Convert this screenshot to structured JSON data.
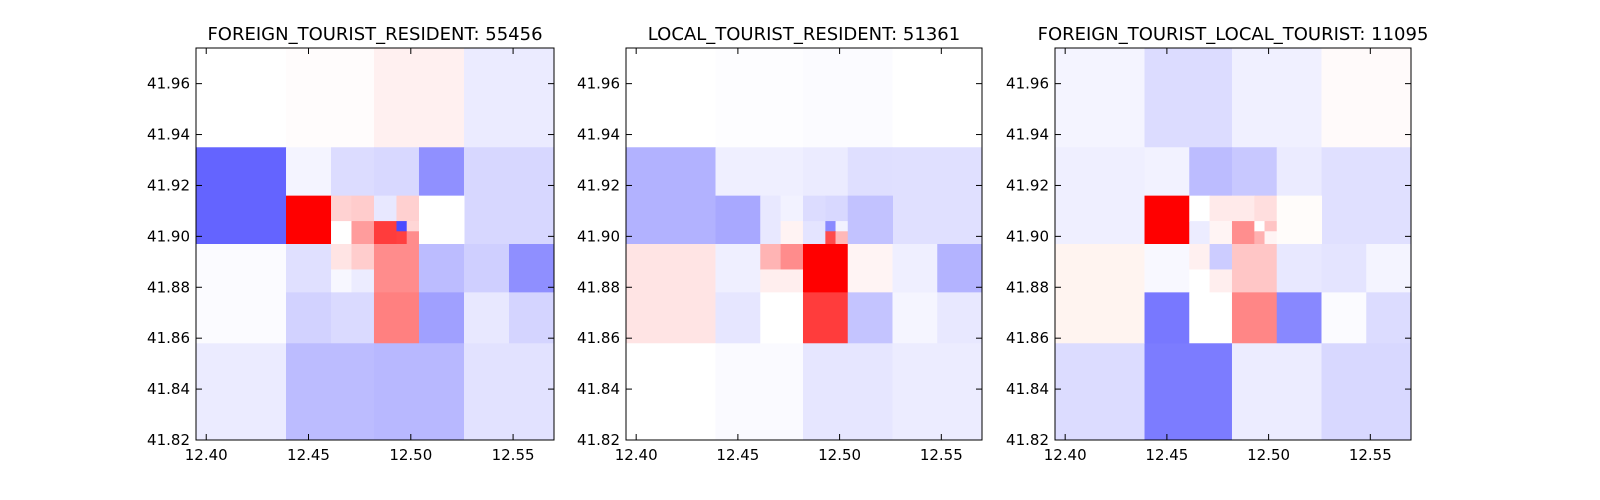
{
  "chart_data": [
    {
      "type": "heatmap",
      "title": "FOREIGN_TOURIST_RESIDENT: 55456",
      "xlim": [
        12.395,
        12.57
      ],
      "ylim": [
        41.82,
        41.974
      ],
      "xticks": [
        "12.40",
        "12.45",
        "12.50",
        "12.55"
      ],
      "yticks": [
        "41.82",
        "41.84",
        "41.86",
        "41.88",
        "41.90",
        "41.92",
        "41.94",
        "41.96"
      ],
      "cells": [
        {
          "x0": 12.395,
          "x1": 12.439,
          "y0": 41.935,
          "y1": 41.974,
          "color": "#ffffff"
        },
        {
          "x0": 12.439,
          "x1": 12.482,
          "y0": 41.935,
          "y1": 41.974,
          "color": "#fffcfc"
        },
        {
          "x0": 12.482,
          "x1": 12.526,
          "y0": 41.935,
          "y1": 41.974,
          "color": "#fff0f0"
        },
        {
          "x0": 12.526,
          "x1": 12.57,
          "y0": 41.935,
          "y1": 41.974,
          "color": "#ebebff"
        },
        {
          "x0": 12.395,
          "x1": 12.439,
          "y0": 41.897,
          "y1": 41.935,
          "color": "#6464ff"
        },
        {
          "x0": 12.439,
          "x1": 12.461,
          "y0": 41.916,
          "y1": 41.935,
          "color": "#f4f4ff"
        },
        {
          "x0": 12.461,
          "x1": 12.482,
          "y0": 41.916,
          "y1": 41.935,
          "color": "#dcdcff"
        },
        {
          "x0": 12.482,
          "x1": 12.504,
          "y0": 41.916,
          "y1": 41.935,
          "color": "#d8d8ff"
        },
        {
          "x0": 12.504,
          "x1": 12.526,
          "y0": 41.916,
          "y1": 41.935,
          "color": "#9090ff"
        },
        {
          "x0": 12.526,
          "x1": 12.57,
          "y0": 41.897,
          "y1": 41.935,
          "color": "#d7d7ff"
        },
        {
          "x0": 12.439,
          "x1": 12.461,
          "y0": 41.897,
          "y1": 41.916,
          "color": "#ff0000"
        },
        {
          "x0": 12.461,
          "x1": 12.471,
          "y0": 41.906,
          "y1": 41.916,
          "color": "#ffd2d2"
        },
        {
          "x0": 12.471,
          "x1": 12.482,
          "y0": 41.906,
          "y1": 41.916,
          "color": "#ffcccc"
        },
        {
          "x0": 12.461,
          "x1": 12.471,
          "y0": 41.897,
          "y1": 41.906,
          "color": "#ffffff"
        },
        {
          "x0": 12.471,
          "x1": 12.482,
          "y0": 41.897,
          "y1": 41.906,
          "color": "#ff9c9c"
        },
        {
          "x0": 12.482,
          "x1": 12.493,
          "y0": 41.906,
          "y1": 41.916,
          "color": "#e8e8ff"
        },
        {
          "x0": 12.493,
          "x1": 12.504,
          "y0": 41.906,
          "y1": 41.916,
          "color": "#ffd0d0"
        },
        {
          "x0": 12.482,
          "x1": 12.493,
          "y0": 41.897,
          "y1": 41.906,
          "color": "#ff3c3c"
        },
        {
          "x0": 12.493,
          "x1": 12.498,
          "y0": 41.902,
          "y1": 41.906,
          "color": "#4b4bff"
        },
        {
          "x0": 12.498,
          "x1": 12.504,
          "y0": 41.902,
          "y1": 41.906,
          "color": "#ffd6d6"
        },
        {
          "x0": 12.493,
          "x1": 12.498,
          "y0": 41.897,
          "y1": 41.902,
          "color": "#ff4040"
        },
        {
          "x0": 12.498,
          "x1": 12.504,
          "y0": 41.897,
          "y1": 41.902,
          "color": "#ff8c8c"
        },
        {
          "x0": 12.504,
          "x1": 12.526,
          "y0": 41.897,
          "y1": 41.916,
          "color": "#ffffff"
        },
        {
          "x0": 12.395,
          "x1": 12.439,
          "y0": 41.858,
          "y1": 41.897,
          "color": "#fbfbff"
        },
        {
          "x0": 12.439,
          "x1": 12.461,
          "y0": 41.878,
          "y1": 41.897,
          "color": "#e0e0ff"
        },
        {
          "x0": 12.461,
          "x1": 12.471,
          "y0": 41.887,
          "y1": 41.897,
          "color": "#ffe4e4"
        },
        {
          "x0": 12.471,
          "x1": 12.482,
          "y0": 41.887,
          "y1": 41.897,
          "color": "#ffcdcd"
        },
        {
          "x0": 12.461,
          "x1": 12.471,
          "y0": 41.878,
          "y1": 41.887,
          "color": "#f7f7ff"
        },
        {
          "x0": 12.471,
          "x1": 12.482,
          "y0": 41.878,
          "y1": 41.887,
          "color": "#ececff"
        },
        {
          "x0": 12.482,
          "x1": 12.504,
          "y0": 41.878,
          "y1": 41.897,
          "color": "#ff8c8c"
        },
        {
          "x0": 12.504,
          "x1": 12.526,
          "y0": 41.878,
          "y1": 41.897,
          "color": "#bcbcff"
        },
        {
          "x0": 12.526,
          "x1": 12.548,
          "y0": 41.878,
          "y1": 41.897,
          "color": "#cfcfff"
        },
        {
          "x0": 12.548,
          "x1": 12.57,
          "y0": 41.878,
          "y1": 41.897,
          "color": "#8f8fff"
        },
        {
          "x0": 12.439,
          "x1": 12.461,
          "y0": 41.858,
          "y1": 41.878,
          "color": "#d2d2ff"
        },
        {
          "x0": 12.461,
          "x1": 12.482,
          "y0": 41.858,
          "y1": 41.878,
          "color": "#dadaff"
        },
        {
          "x0": 12.482,
          "x1": 12.504,
          "y0": 41.858,
          "y1": 41.878,
          "color": "#ff8080"
        },
        {
          "x0": 12.504,
          "x1": 12.526,
          "y0": 41.858,
          "y1": 41.878,
          "color": "#a0a0ff"
        },
        {
          "x0": 12.526,
          "x1": 12.548,
          "y0": 41.858,
          "y1": 41.878,
          "color": "#e8e8ff"
        },
        {
          "x0": 12.548,
          "x1": 12.57,
          "y0": 41.858,
          "y1": 41.878,
          "color": "#d4d4ff"
        },
        {
          "x0": 12.395,
          "x1": 12.439,
          "y0": 41.82,
          "y1": 41.858,
          "color": "#ebebff"
        },
        {
          "x0": 12.439,
          "x1": 12.482,
          "y0": 41.82,
          "y1": 41.858,
          "color": "#bcbcff"
        },
        {
          "x0": 12.482,
          "x1": 12.526,
          "y0": 41.82,
          "y1": 41.858,
          "color": "#b8b8ff"
        },
        {
          "x0": 12.526,
          "x1": 12.57,
          "y0": 41.82,
          "y1": 41.858,
          "color": "#e2e2ff"
        }
      ]
    },
    {
      "type": "heatmap",
      "title": "LOCAL_TOURIST_RESIDENT: 51361",
      "xlim": [
        12.395,
        12.57
      ],
      "ylim": [
        41.82,
        41.974
      ],
      "xticks": [
        "12.40",
        "12.45",
        "12.50",
        "12.55"
      ],
      "yticks": [
        "41.82",
        "41.84",
        "41.86",
        "41.88",
        "41.90",
        "41.92",
        "41.94",
        "41.96"
      ],
      "cells": [
        {
          "x0": 12.395,
          "x1": 12.439,
          "y0": 41.935,
          "y1": 41.974,
          "color": "#ffffff"
        },
        {
          "x0": 12.439,
          "x1": 12.482,
          "y0": 41.935,
          "y1": 41.974,
          "color": "#fdfdff"
        },
        {
          "x0": 12.482,
          "x1": 12.526,
          "y0": 41.935,
          "y1": 41.974,
          "color": "#fbfbff"
        },
        {
          "x0": 12.526,
          "x1": 12.57,
          "y0": 41.935,
          "y1": 41.974,
          "color": "#ffffff"
        },
        {
          "x0": 12.395,
          "x1": 12.439,
          "y0": 41.897,
          "y1": 41.935,
          "color": "#b2b2ff"
        },
        {
          "x0": 12.439,
          "x1": 12.482,
          "y0": 41.916,
          "y1": 41.935,
          "color": "#efefff"
        },
        {
          "x0": 12.482,
          "x1": 12.504,
          "y0": 41.916,
          "y1": 41.935,
          "color": "#ebebff"
        },
        {
          "x0": 12.504,
          "x1": 12.526,
          "y0": 41.916,
          "y1": 41.935,
          "color": "#dfdfff"
        },
        {
          "x0": 12.526,
          "x1": 12.57,
          "y0": 41.897,
          "y1": 41.935,
          "color": "#e0e0ff"
        },
        {
          "x0": 12.439,
          "x1": 12.461,
          "y0": 41.897,
          "y1": 41.916,
          "color": "#a8a8ff"
        },
        {
          "x0": 12.461,
          "x1": 12.471,
          "y0": 41.897,
          "y1": 41.916,
          "color": "#e8e8ff"
        },
        {
          "x0": 12.471,
          "x1": 12.482,
          "y0": 41.906,
          "y1": 41.916,
          "color": "#f2f2ff"
        },
        {
          "x0": 12.471,
          "x1": 12.482,
          "y0": 41.897,
          "y1": 41.906,
          "color": "#fff3f3"
        },
        {
          "x0": 12.482,
          "x1": 12.493,
          "y0": 41.906,
          "y1": 41.916,
          "color": "#dcdcff"
        },
        {
          "x0": 12.493,
          "x1": 12.504,
          "y0": 41.906,
          "y1": 41.916,
          "color": "#d8d8ff"
        },
        {
          "x0": 12.482,
          "x1": 12.493,
          "y0": 41.897,
          "y1": 41.906,
          "color": "#e4e4ff"
        },
        {
          "x0": 12.493,
          "x1": 12.498,
          "y0": 41.902,
          "y1": 41.906,
          "color": "#8a8aff"
        },
        {
          "x0": 12.498,
          "x1": 12.504,
          "y0": 41.902,
          "y1": 41.906,
          "color": "#f2f2ff"
        },
        {
          "x0": 12.493,
          "x1": 12.498,
          "y0": 41.897,
          "y1": 41.902,
          "color": "#ff4a4a"
        },
        {
          "x0": 12.498,
          "x1": 12.504,
          "y0": 41.897,
          "y1": 41.902,
          "color": "#ffb8b8"
        },
        {
          "x0": 12.504,
          "x1": 12.526,
          "y0": 41.897,
          "y1": 41.916,
          "color": "#c2c2ff"
        },
        {
          "x0": 12.395,
          "x1": 12.439,
          "y0": 41.858,
          "y1": 41.897,
          "color": "#ffe4e4"
        },
        {
          "x0": 12.439,
          "x1": 12.461,
          "y0": 41.878,
          "y1": 41.897,
          "color": "#efefff"
        },
        {
          "x0": 12.461,
          "x1": 12.471,
          "y0": 41.887,
          "y1": 41.897,
          "color": "#ffb4b4"
        },
        {
          "x0": 12.471,
          "x1": 12.482,
          "y0": 41.887,
          "y1": 41.897,
          "color": "#ff8c8c"
        },
        {
          "x0": 12.461,
          "x1": 12.482,
          "y0": 41.878,
          "y1": 41.887,
          "color": "#ffeeee"
        },
        {
          "x0": 12.482,
          "x1": 12.504,
          "y0": 41.878,
          "y1": 41.897,
          "color": "#ff0000"
        },
        {
          "x0": 12.504,
          "x1": 12.526,
          "y0": 41.878,
          "y1": 41.897,
          "color": "#fff4f4"
        },
        {
          "x0": 12.526,
          "x1": 12.548,
          "y0": 41.878,
          "y1": 41.897,
          "color": "#efefff"
        },
        {
          "x0": 12.548,
          "x1": 12.57,
          "y0": 41.878,
          "y1": 41.897,
          "color": "#b3b3ff"
        },
        {
          "x0": 12.439,
          "x1": 12.461,
          "y0": 41.858,
          "y1": 41.878,
          "color": "#e6e6ff"
        },
        {
          "x0": 12.461,
          "x1": 12.482,
          "y0": 41.858,
          "y1": 41.878,
          "color": "#ffffff"
        },
        {
          "x0": 12.482,
          "x1": 12.504,
          "y0": 41.858,
          "y1": 41.878,
          "color": "#ff3c3c"
        },
        {
          "x0": 12.504,
          "x1": 12.526,
          "y0": 41.858,
          "y1": 41.878,
          "color": "#c4c4ff"
        },
        {
          "x0": 12.526,
          "x1": 12.548,
          "y0": 41.858,
          "y1": 41.878,
          "color": "#f5f5ff"
        },
        {
          "x0": 12.548,
          "x1": 12.57,
          "y0": 41.858,
          "y1": 41.878,
          "color": "#e8e8ff"
        },
        {
          "x0": 12.395,
          "x1": 12.439,
          "y0": 41.82,
          "y1": 41.858,
          "color": "#ffffff"
        },
        {
          "x0": 12.439,
          "x1": 12.482,
          "y0": 41.82,
          "y1": 41.858,
          "color": "#fafaff"
        },
        {
          "x0": 12.482,
          "x1": 12.526,
          "y0": 41.82,
          "y1": 41.858,
          "color": "#e6e6ff"
        },
        {
          "x0": 12.526,
          "x1": 12.57,
          "y0": 41.82,
          "y1": 41.858,
          "color": "#ececff"
        }
      ]
    },
    {
      "type": "heatmap",
      "title": "FOREIGN_TOURIST_LOCAL_TOURIST: 11095",
      "xlim": [
        12.395,
        12.57
      ],
      "ylim": [
        41.82,
        41.974
      ],
      "xticks": [
        "12.40",
        "12.45",
        "12.50",
        "12.55"
      ],
      "yticks": [
        "41.82",
        "41.84",
        "41.86",
        "41.88",
        "41.90",
        "41.92",
        "41.94",
        "41.96"
      ],
      "cells": [
        {
          "x0": 12.395,
          "x1": 12.439,
          "y0": 41.935,
          "y1": 41.974,
          "color": "#f4f4ff"
        },
        {
          "x0": 12.439,
          "x1": 12.482,
          "y0": 41.935,
          "y1": 41.974,
          "color": "#dcdcff"
        },
        {
          "x0": 12.482,
          "x1": 12.526,
          "y0": 41.935,
          "y1": 41.974,
          "color": "#f0f0ff"
        },
        {
          "x0": 12.526,
          "x1": 12.57,
          "y0": 41.935,
          "y1": 41.974,
          "color": "#fffafa"
        },
        {
          "x0": 12.395,
          "x1": 12.439,
          "y0": 41.897,
          "y1": 41.935,
          "color": "#efefff"
        },
        {
          "x0": 12.439,
          "x1": 12.461,
          "y0": 41.916,
          "y1": 41.935,
          "color": "#f2f2ff"
        },
        {
          "x0": 12.461,
          "x1": 12.482,
          "y0": 41.916,
          "y1": 41.935,
          "color": "#bcbcff"
        },
        {
          "x0": 12.482,
          "x1": 12.504,
          "y0": 41.916,
          "y1": 41.935,
          "color": "#c8c8ff"
        },
        {
          "x0": 12.504,
          "x1": 12.526,
          "y0": 41.916,
          "y1": 41.935,
          "color": "#ebebff"
        },
        {
          "x0": 12.526,
          "x1": 12.57,
          "y0": 41.897,
          "y1": 41.935,
          "color": "#e0e0ff"
        },
        {
          "x0": 12.439,
          "x1": 12.461,
          "y0": 41.897,
          "y1": 41.916,
          "color": "#ff0000"
        },
        {
          "x0": 12.461,
          "x1": 12.471,
          "y0": 41.906,
          "y1": 41.916,
          "color": "#ffffff"
        },
        {
          "x0": 12.471,
          "x1": 12.482,
          "y0": 41.906,
          "y1": 41.916,
          "color": "#ffeaea"
        },
        {
          "x0": 12.461,
          "x1": 12.471,
          "y0": 41.897,
          "y1": 41.906,
          "color": "#ececff"
        },
        {
          "x0": 12.471,
          "x1": 12.482,
          "y0": 41.897,
          "y1": 41.906,
          "color": "#fff4f4"
        },
        {
          "x0": 12.482,
          "x1": 12.493,
          "y0": 41.906,
          "y1": 41.916,
          "color": "#ffeaea"
        },
        {
          "x0": 12.493,
          "x1": 12.504,
          "y0": 41.906,
          "y1": 41.916,
          "color": "#ffdede"
        },
        {
          "x0": 12.482,
          "x1": 12.493,
          "y0": 41.897,
          "y1": 41.906,
          "color": "#ff8e8e"
        },
        {
          "x0": 12.493,
          "x1": 12.498,
          "y0": 41.902,
          "y1": 41.906,
          "color": "#ffffff"
        },
        {
          "x0": 12.498,
          "x1": 12.504,
          "y0": 41.902,
          "y1": 41.906,
          "color": "#ffc4c4"
        },
        {
          "x0": 12.493,
          "x1": 12.498,
          "y0": 41.897,
          "y1": 41.902,
          "color": "#ffb0b0"
        },
        {
          "x0": 12.498,
          "x1": 12.504,
          "y0": 41.897,
          "y1": 41.902,
          "color": "#fff4f4"
        },
        {
          "x0": 12.504,
          "x1": 12.526,
          "y0": 41.897,
          "y1": 41.916,
          "color": "#fffcfa"
        },
        {
          "x0": 12.395,
          "x1": 12.439,
          "y0": 41.858,
          "y1": 41.897,
          "color": "#fff4f0"
        },
        {
          "x0": 12.439,
          "x1": 12.461,
          "y0": 41.878,
          "y1": 41.897,
          "color": "#f8f8ff"
        },
        {
          "x0": 12.461,
          "x1": 12.471,
          "y0": 41.887,
          "y1": 41.897,
          "color": "#fff0f0"
        },
        {
          "x0": 12.471,
          "x1": 12.482,
          "y0": 41.887,
          "y1": 41.897,
          "color": "#ccccff"
        },
        {
          "x0": 12.461,
          "x1": 12.471,
          "y0": 41.878,
          "y1": 41.887,
          "color": "#ffffff"
        },
        {
          "x0": 12.471,
          "x1": 12.482,
          "y0": 41.878,
          "y1": 41.887,
          "color": "#ffeeee"
        },
        {
          "x0": 12.482,
          "x1": 12.504,
          "y0": 41.878,
          "y1": 41.897,
          "color": "#ffc6c6"
        },
        {
          "x0": 12.504,
          "x1": 12.526,
          "y0": 41.878,
          "y1": 41.897,
          "color": "#e8e8ff"
        },
        {
          "x0": 12.526,
          "x1": 12.548,
          "y0": 41.878,
          "y1": 41.897,
          "color": "#e4e4ff"
        },
        {
          "x0": 12.548,
          "x1": 12.57,
          "y0": 41.878,
          "y1": 41.897,
          "color": "#f4f4ff"
        },
        {
          "x0": 12.439,
          "x1": 12.461,
          "y0": 41.858,
          "y1": 41.878,
          "color": "#7878ff"
        },
        {
          "x0": 12.461,
          "x1": 12.482,
          "y0": 41.858,
          "y1": 41.878,
          "color": "#ffffff"
        },
        {
          "x0": 12.482,
          "x1": 12.504,
          "y0": 41.858,
          "y1": 41.878,
          "color": "#ff8686"
        },
        {
          "x0": 12.504,
          "x1": 12.526,
          "y0": 41.858,
          "y1": 41.878,
          "color": "#8888ff"
        },
        {
          "x0": 12.526,
          "x1": 12.548,
          "y0": 41.858,
          "y1": 41.878,
          "color": "#fbfbff"
        },
        {
          "x0": 12.548,
          "x1": 12.57,
          "y0": 41.858,
          "y1": 41.878,
          "color": "#dcdcff"
        },
        {
          "x0": 12.395,
          "x1": 12.439,
          "y0": 41.82,
          "y1": 41.858,
          "color": "#dcdcff"
        },
        {
          "x0": 12.439,
          "x1": 12.482,
          "y0": 41.82,
          "y1": 41.858,
          "color": "#7c7cff"
        },
        {
          "x0": 12.482,
          "x1": 12.526,
          "y0": 41.82,
          "y1": 41.858,
          "color": "#ececff"
        },
        {
          "x0": 12.526,
          "x1": 12.57,
          "y0": 41.82,
          "y1": 41.858,
          "color": "#d8d8ff"
        }
      ]
    }
  ]
}
